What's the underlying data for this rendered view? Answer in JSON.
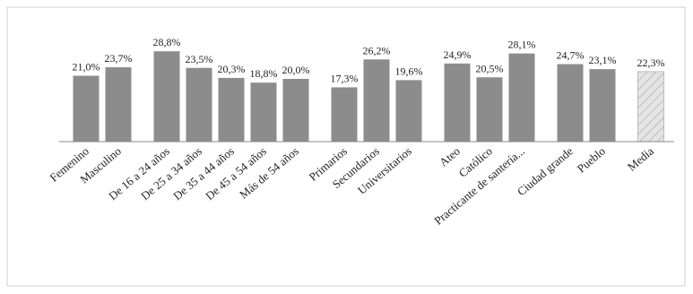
{
  "chart_data": {
    "type": "bar",
    "categories": [
      "Femenino",
      "Masculino",
      null,
      "De 16 a 24 años",
      "De 25 a 34 años",
      "De 35 a 44 años",
      "De 45 a 54 años",
      "Más de 54 años",
      null,
      "Primarios",
      "Secundarios",
      "Universitarios",
      null,
      "Ateo",
      "Católico",
      "Practicante de santería...",
      null,
      "Ciudad grande",
      "Pueblo",
      null,
      "Media"
    ],
    "values": [
      21.0,
      23.7,
      null,
      28.8,
      23.5,
      20.3,
      18.8,
      20.0,
      null,
      17.3,
      26.2,
      19.6,
      null,
      24.9,
      20.5,
      28.1,
      null,
      24.7,
      23.1,
      null,
      22.3
    ],
    "value_labels": [
      "21,0%",
      "23,7%",
      null,
      "28,8%",
      "23,5%",
      "20,3%",
      "18,8%",
      "20,0%",
      null,
      "17,3%",
      "26,2%",
      "19,6%",
      null,
      "24,9%",
      "20,5%",
      "28,1%",
      null,
      "24,7%",
      "23,1%",
      null,
      "22,3%"
    ],
    "color": "#8c8c8c",
    "patterns": [
      null,
      null,
      null,
      null,
      null,
      null,
      null,
      null,
      null,
      null,
      null,
      null,
      null,
      null,
      null,
      null,
      null,
      null,
      null,
      null,
      "hatch"
    ],
    "pattern_color": "#e4e4e4",
    "ylim": [
      0,
      40
    ]
  }
}
